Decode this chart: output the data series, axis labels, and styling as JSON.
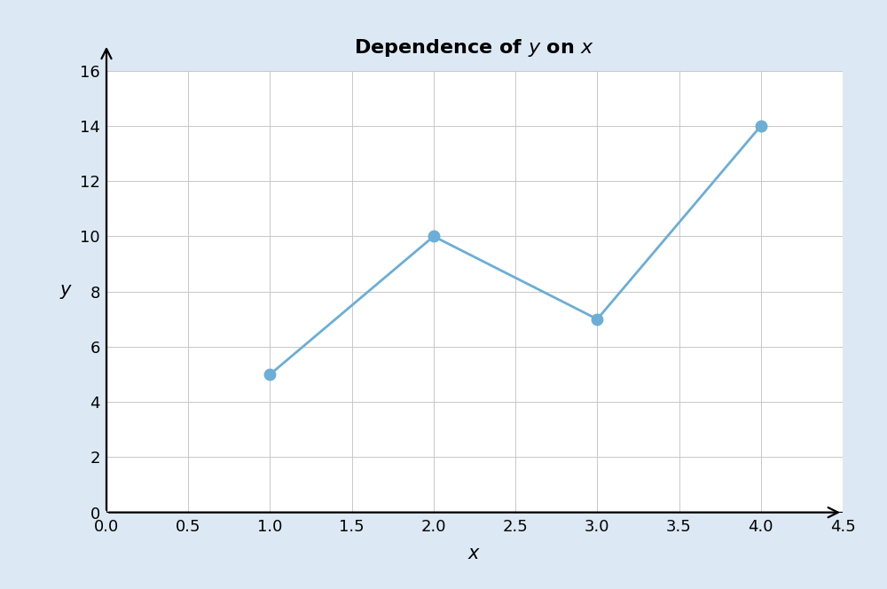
{
  "x": [
    1,
    2,
    3,
    4
  ],
  "y": [
    5,
    10,
    7,
    14
  ],
  "xlim": [
    0,
    4.5
  ],
  "ylim": [
    0,
    16
  ],
  "xticks": [
    0,
    0.5,
    1.0,
    1.5,
    2.0,
    2.5,
    3.0,
    3.5,
    4.0,
    4.5
  ],
  "yticks": [
    0,
    2,
    4,
    6,
    8,
    10,
    12,
    14,
    16
  ],
  "xlabel": "x",
  "ylabel": "y",
  "title_plain": "Dependence of ",
  "title_y": "y",
  "title_mid": " on ",
  "title_x": "x",
  "line_color": "#6baed6",
  "marker_color": "#6baed6",
  "marker_size": 9,
  "line_width": 2.0,
  "bg_color": "#dce9f5",
  "plot_bg_color": "#ffffff",
  "grid_color": "#c8c8c8",
  "title_fontsize": 16,
  "label_fontsize": 15,
  "tick_fontsize": 13
}
